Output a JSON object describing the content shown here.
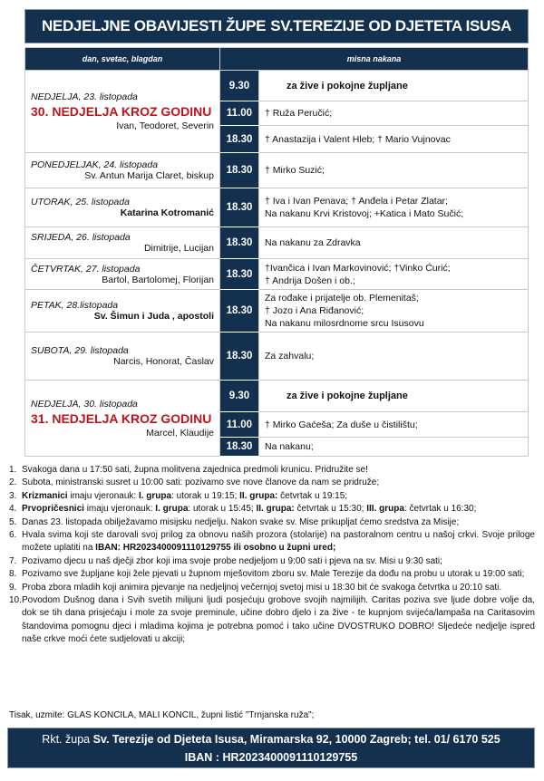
{
  "title": {
    "part1": "NEDJELJNE OBAVIJESTI ŽUPE",
    "part2": "SV.TEREZIJE OD DJETETA ISUSA"
  },
  "table": {
    "headers": {
      "day": "dan, svetac, blagdan",
      "intention": "misna nakana"
    },
    "days": [
      {
        "name": "NEDJELJA, 23. listopada",
        "feast": "30. NEDJELJA KROZ GODINU",
        "saints": "Ivan, Teodoret, Severin",
        "masses": [
          {
            "time": "9.30",
            "lines": [
              "za žive i pokojne župljane"
            ],
            "bold": true,
            "h": 34
          },
          {
            "time": "11.00",
            "lines": [
              "† Ruža Peručić;"
            ],
            "h": 27
          },
          {
            "time": "18.30",
            "lines": [
              "† Anastazija i Valent Hleb; † Mario Vujnovac"
            ],
            "h": 30
          }
        ]
      },
      {
        "name": "PONEDJELJAK, 24. listopada",
        "saints": "Sv. Antun Marija Claret, biskup",
        "masses": [
          {
            "time": "18.30",
            "lines": [
              "† Mirko Suzić;"
            ],
            "h": 39
          }
        ]
      },
      {
        "name": "UTORAK, 25. listopada",
        "saints": "Katarina Kotromanić",
        "saints_bold": true,
        "masses": [
          {
            "time": "18.30",
            "lines": [
              "† Iva i Ivan Penava; † Anđela i Petar Zlatar;",
              "Na nakanu Krvi Kristovoj; +Katica i Mato Sučić;"
            ],
            "h": 43
          }
        ]
      },
      {
        "name": "SRIJEDA, 26. listopada",
        "saints": "Dimitrije, Lucijan",
        "masses": [
          {
            "time": "18.30",
            "lines": [
              "Na nakanu za Zdravka"
            ],
            "h": 35
          }
        ]
      },
      {
        "name": "ČETVRTAK, 27. listopada",
        "saints": "Bartol, Bartolomej, Florijan",
        "masses": [
          {
            "time": "18.30",
            "lines": [
              "†Ivančica i Ivan Markovinović; †Vinko Ćurić;",
              "† Andrija Došen i ob.;"
            ],
            "h": 34
          }
        ]
      },
      {
        "name": "PETAK, 28.listopada",
        "saints": "Sv. Šimun i Juda , apostoli",
        "saints_bold": true,
        "masses": [
          {
            "time": "18.30",
            "lines": [
              "Za rođake i prijatelje ob. Plemenitaš;",
              "† Jozo i Ana Riđanović;",
              "Na nakanu milosrdnome srcu Isusovu"
            ],
            "h": 43
          }
        ]
      },
      {
        "name": "SUBOTA, 29. listopada",
        "saints": "Narcis, Honorat, Časlav",
        "masses": [
          {
            "time": "18.30",
            "lines": [
              "Za zahvalu;",
              ""
            ],
            "h": 53
          }
        ]
      },
      {
        "name": "NEDJELJA, 30. listopada",
        "feast": "31. NEDJELJA KROZ GODINU",
        "saints": "Marcel, Klaudije",
        "masses": [
          {
            "time": "9.30",
            "lines": [
              "za žive i pokojne župljane"
            ],
            "bold": true,
            "h": 35
          },
          {
            "time": "11.00",
            "lines": [
              "† Mirko Gaćeša; Za duše u čistilištu;"
            ],
            "h": 28
          },
          {
            "time": "18.30",
            "lines": [
              "Na nakanu;"
            ],
            "h": 21
          }
        ]
      }
    ]
  },
  "notes": [
    {
      "num": "1.",
      "parts": [
        {
          "t": "Svakoga dana u 17:50 sati, župna molitvena zajednica predmoli krunicu. Pridružite se!"
        }
      ]
    },
    {
      "num": "2.",
      "parts": [
        {
          "t": "Subota, ministranski susret u 10:00 sati: pozivamo sve nove članove da nam se pridruže;"
        }
      ]
    },
    {
      "num": "3.",
      "parts": [
        {
          "t": "Krizmanici",
          "b": true
        },
        {
          "t": " imaju vjeronauk:  "
        },
        {
          "t": "I. grupa",
          "b": true
        },
        {
          "t": ": utorak u 19:15;  "
        },
        {
          "t": "II. grupa:",
          "b": true
        },
        {
          "t": " četvrtak u 19:15;"
        }
      ]
    },
    {
      "num": "4.",
      "parts": [
        {
          "t": "Prvopričesnici",
          "b": true
        },
        {
          "t": " imaju vjeronauk:    "
        },
        {
          "t": "I. grupa",
          "b": true
        },
        {
          "t": ": utorak u 15:45;  "
        },
        {
          "t": "II. grupa:",
          "b": true
        },
        {
          "t": " četvrtak u 15:30; "
        },
        {
          "t": "III. grupa",
          "b": true
        },
        {
          "t": ": četvrtak u 16:30;"
        }
      ]
    },
    {
      "num": "5.",
      "parts": [
        {
          "t": "Danas 23. listopada obilježavamo misijsku nedjelju. Nakon svake sv. Mise prikupljat ćemo sredstva za Misije;"
        }
      ]
    },
    {
      "num": "6.",
      "parts": [
        {
          "t": "Hvala svima koji ste darovali svoj prilog za obnovu naših prozora (stolarije) na pastoralnom centru u našoj crkvi. Svoje priloge možete uplatiti na "
        },
        {
          "t": "IBAN:  HR2023400091110129755 ili osobno u župni ured;",
          "b": true
        }
      ]
    },
    {
      "num": "7.",
      "parts": [
        {
          "t": "Pozivamo djecu u naš dječji zbor koji ima svoje probe nedjeljom u 9:00 sati i pjeva na sv. Misi u 9:30 sati;"
        }
      ]
    },
    {
      "num": "8.",
      "parts": [
        {
          "t": "Pozivamo sve župljane koji žele pjevati u župnom mješovitom zboru sv. Male Terezije da dođu na probu u utorak u 19:00 sati;"
        }
      ]
    },
    {
      "num": "9.",
      "parts": [
        {
          "t": "Proba zbora mladih koji animira pjevanje na nedjeljnoj večernjoj svetoj misi u 18:30 bit će svakoga četvrtka u 20:10 sati."
        }
      ]
    },
    {
      "num": "10.",
      "parts": [
        {
          "t": "Povodom Dušnog dana i Svih svetih milijuni ljudi posjećuju grobove svojih najmilijih. Caritas poziva sve ljude dobre volje da, dok se tih dana prisjećaju i mole za svoje preminule, učine dobro djelo i za žive - te kupnjom svijeća/lampaša na Caritasovim štandovima pomognu djeci i mladima kojima je potrebna pomoć i tako učine DVOSTRUKO DOBRO! Sljedeće nedjelje ispred naše crkve moći ćete sudjelovati u akciji;"
        }
      ]
    }
  ],
  "tisak": "Tisak, uzmite: GLAS KONCILA, MALI KONCIL,  župni listić \"Trnjanska ruža\";",
  "footer": {
    "prefix": "Rkt. župa",
    "address": "Sv. Terezije od Djeteta Isusa, Miramarska 92, 10000 Zagreb; tel. 01/ 6170 525",
    "iban": "IBAN : HR2023400091110129755"
  },
  "colors": {
    "navy": "#14304f",
    "feast_red": "#c0141c"
  }
}
